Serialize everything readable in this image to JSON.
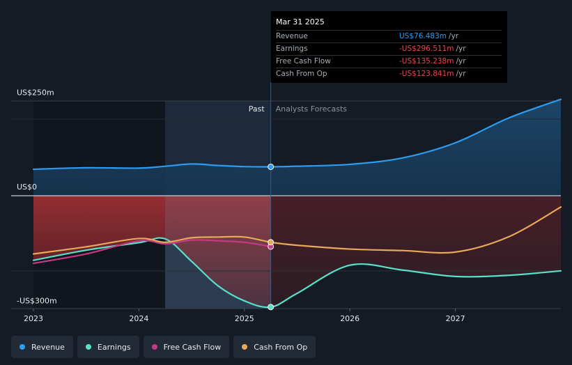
{
  "chart_data": {
    "type": "line",
    "units": "US$ millions",
    "y_axis_labels": [
      "US$250m",
      "US$0",
      "-US$300m"
    ],
    "ylim": [
      -300,
      250
    ],
    "x_ticks": [
      "2023",
      "2024",
      "2025",
      "2026",
      "2027"
    ],
    "x_tick_values": [
      2023,
      2024,
      2025,
      2026,
      2027
    ],
    "xlim": [
      2023,
      2028
    ],
    "divider_x": 2025.25,
    "past_label": "Past",
    "forecast_label": "Analysts Forecasts",
    "series": [
      {
        "name": "Revenue",
        "color": "#2d9cf0",
        "points": [
          [
            2023,
            70
          ],
          [
            2023.5,
            74
          ],
          [
            2024,
            73
          ],
          [
            2024.25,
            78
          ],
          [
            2024.5,
            84
          ],
          [
            2024.75,
            80
          ],
          [
            2025,
            77
          ],
          [
            2025.25,
            76.483
          ],
          [
            2025.5,
            78
          ],
          [
            2026,
            83
          ],
          [
            2026.5,
            100
          ],
          [
            2027,
            140
          ],
          [
            2027.5,
            205
          ],
          [
            2028,
            255
          ]
        ]
      },
      {
        "name": "Earnings",
        "color": "#58e1c8",
        "points": [
          [
            2023,
            -172
          ],
          [
            2023.5,
            -145
          ],
          [
            2024,
            -125
          ],
          [
            2024.25,
            -115
          ],
          [
            2024.5,
            -175
          ],
          [
            2024.75,
            -240
          ],
          [
            2025,
            -280
          ],
          [
            2025.25,
            -296.511
          ],
          [
            2025.5,
            -260
          ],
          [
            2026,
            -185
          ],
          [
            2026.5,
            -198
          ],
          [
            2027,
            -215
          ],
          [
            2027.5,
            -212
          ],
          [
            2028,
            -200
          ]
        ]
      },
      {
        "name": "Free Cash Flow",
        "color": "#c53a84",
        "points": [
          [
            2023,
            -180
          ],
          [
            2023.5,
            -155
          ],
          [
            2024,
            -120
          ],
          [
            2024.25,
            -128
          ],
          [
            2024.5,
            -118
          ],
          [
            2024.75,
            -120
          ],
          [
            2025,
            -124
          ],
          [
            2025.25,
            -135.238
          ]
        ]
      },
      {
        "name": "Cash From Op",
        "color": "#e8a95b",
        "points": [
          [
            2023,
            -155
          ],
          [
            2023.5,
            -136
          ],
          [
            2024,
            -114
          ],
          [
            2024.25,
            -124
          ],
          [
            2024.5,
            -112
          ],
          [
            2024.75,
            -110
          ],
          [
            2025,
            -110
          ],
          [
            2025.25,
            -123.841
          ],
          [
            2025.5,
            -132
          ],
          [
            2026,
            -142
          ],
          [
            2026.5,
            -146
          ],
          [
            2027,
            -150
          ],
          [
            2027.5,
            -110
          ],
          [
            2028,
            -30
          ]
        ]
      }
    ]
  },
  "tooltip": {
    "date": "Mar 31 2025",
    "rows": [
      {
        "label": "Revenue",
        "value": "US$76.483m",
        "unit": "/yr",
        "color": "#2d9cf0"
      },
      {
        "label": "Earnings",
        "value": "-US$296.511m",
        "unit": "/yr",
        "color": "#e5484d"
      },
      {
        "label": "Free Cash Flow",
        "value": "-US$135.238m",
        "unit": "/yr",
        "color": "#e5484d"
      },
      {
        "label": "Cash From Op",
        "value": "-US$123.841m",
        "unit": "/yr",
        "color": "#e5484d"
      }
    ]
  },
  "legend": [
    {
      "label": "Revenue",
      "color": "#2d9cf0"
    },
    {
      "label": "Earnings",
      "color": "#58e1c8"
    },
    {
      "label": "Free Cash Flow",
      "color": "#c53a84"
    },
    {
      "label": "Cash From Op",
      "color": "#e8a95b"
    }
  ]
}
